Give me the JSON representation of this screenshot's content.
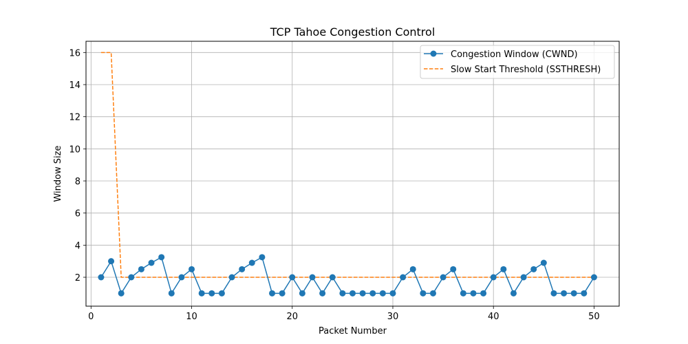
{
  "chart_data": {
    "type": "line",
    "title": "TCP Tahoe Congestion Control",
    "xlabel": "Packet Number",
    "ylabel": "Window Size",
    "xlim": [
      -0.5,
      52.5
    ],
    "ylim": [
      0.2,
      16.7
    ],
    "xticks": [
      0,
      10,
      20,
      30,
      40,
      50
    ],
    "yticks": [
      2,
      4,
      6,
      8,
      10,
      12,
      14,
      16
    ],
    "grid": true,
    "legend_position": "top-right",
    "x": [
      1,
      2,
      3,
      4,
      5,
      6,
      7,
      8,
      9,
      10,
      11,
      12,
      13,
      14,
      15,
      16,
      17,
      18,
      19,
      20,
      21,
      22,
      23,
      24,
      25,
      26,
      27,
      28,
      29,
      30,
      31,
      32,
      33,
      34,
      35,
      36,
      37,
      38,
      39,
      40,
      41,
      42,
      43,
      44,
      45,
      46,
      47,
      48,
      49,
      50
    ],
    "series": [
      {
        "name": "Congestion Window (CWND)",
        "style": "solid-markers",
        "color": "#1f77b4",
        "values": [
          2,
          3,
          1,
          2,
          2.5,
          2.9,
          3.25,
          1,
          2,
          2.5,
          1,
          1,
          1,
          2,
          2.5,
          2.9,
          3.25,
          1,
          1,
          2,
          1,
          2,
          1,
          2,
          1,
          1,
          1,
          1,
          1,
          1,
          2,
          2.5,
          1,
          1,
          2,
          2.5,
          1,
          1,
          1,
          2,
          2.5,
          1,
          2,
          2.5,
          2.9,
          1,
          1,
          1,
          1,
          2
        ]
      },
      {
        "name": "Slow Start Threshold (SSTHRESH)",
        "style": "dashed",
        "color": "#ff7f0e",
        "values": [
          16,
          16,
          2,
          2,
          2,
          2,
          2,
          2,
          2,
          2,
          2,
          2,
          2,
          2,
          2,
          2,
          2,
          2,
          2,
          2,
          2,
          2,
          2,
          2,
          2,
          2,
          2,
          2,
          2,
          2,
          2,
          2,
          2,
          2,
          2,
          2,
          2,
          2,
          2,
          2,
          2,
          2,
          2,
          2,
          2,
          2,
          2,
          2,
          2,
          2
        ]
      }
    ]
  }
}
